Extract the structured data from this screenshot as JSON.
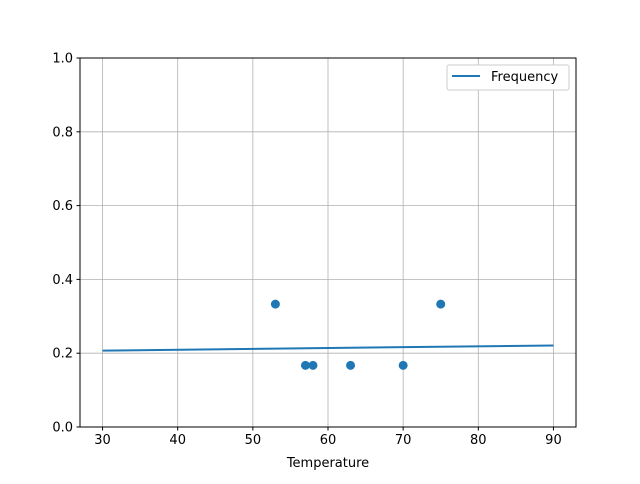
{
  "chart_data": {
    "type": "scatter",
    "title": "",
    "xlabel": "Temperature",
    "ylabel": "",
    "xlim": [
      27,
      93
    ],
    "ylim": [
      0,
      1.0
    ],
    "grid": true,
    "legend_position": "top-right",
    "xticks": [
      30,
      40,
      50,
      60,
      70,
      80,
      90
    ],
    "yticks": [
      "0.0",
      "0.2",
      "0.4",
      "0.6",
      "0.8",
      "1.0"
    ],
    "scatter": {
      "x": [
        53,
        57,
        58,
        63,
        70,
        75
      ],
      "y": [
        0.333,
        0.167,
        0.167,
        0.167,
        0.167,
        0.333
      ],
      "color": "#1f77b4"
    },
    "series": [
      {
        "name": "Frequency",
        "type": "line",
        "x": [
          30,
          90
        ],
        "y": [
          0.207,
          0.221
        ],
        "color": "#1f77b4"
      }
    ]
  }
}
